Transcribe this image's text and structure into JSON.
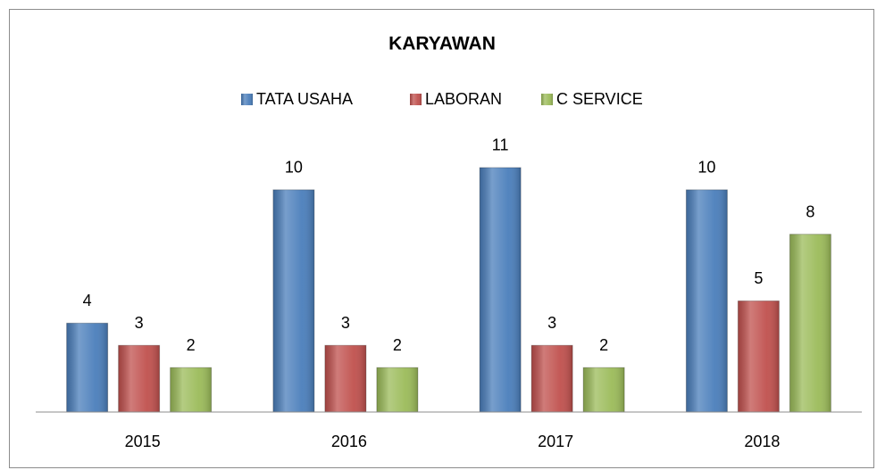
{
  "chart_data": {
    "type": "bar",
    "title": "KARYAWAN",
    "categories": [
      "2015",
      "2016",
      "2017",
      "2018"
    ],
    "series": [
      {
        "name": "TATA USAHA",
        "color": "#4a7ebb",
        "values": [
          4,
          10,
          11,
          10
        ]
      },
      {
        "name": "LABORAN",
        "color": "#c0504d",
        "values": [
          3,
          3,
          3,
          5
        ]
      },
      {
        "name": "C SERVICE",
        "color": "#9bbb59",
        "values": [
          2,
          2,
          2,
          8
        ]
      }
    ],
    "ylim": [
      0,
      12
    ],
    "legend": "top",
    "grid": false
  }
}
